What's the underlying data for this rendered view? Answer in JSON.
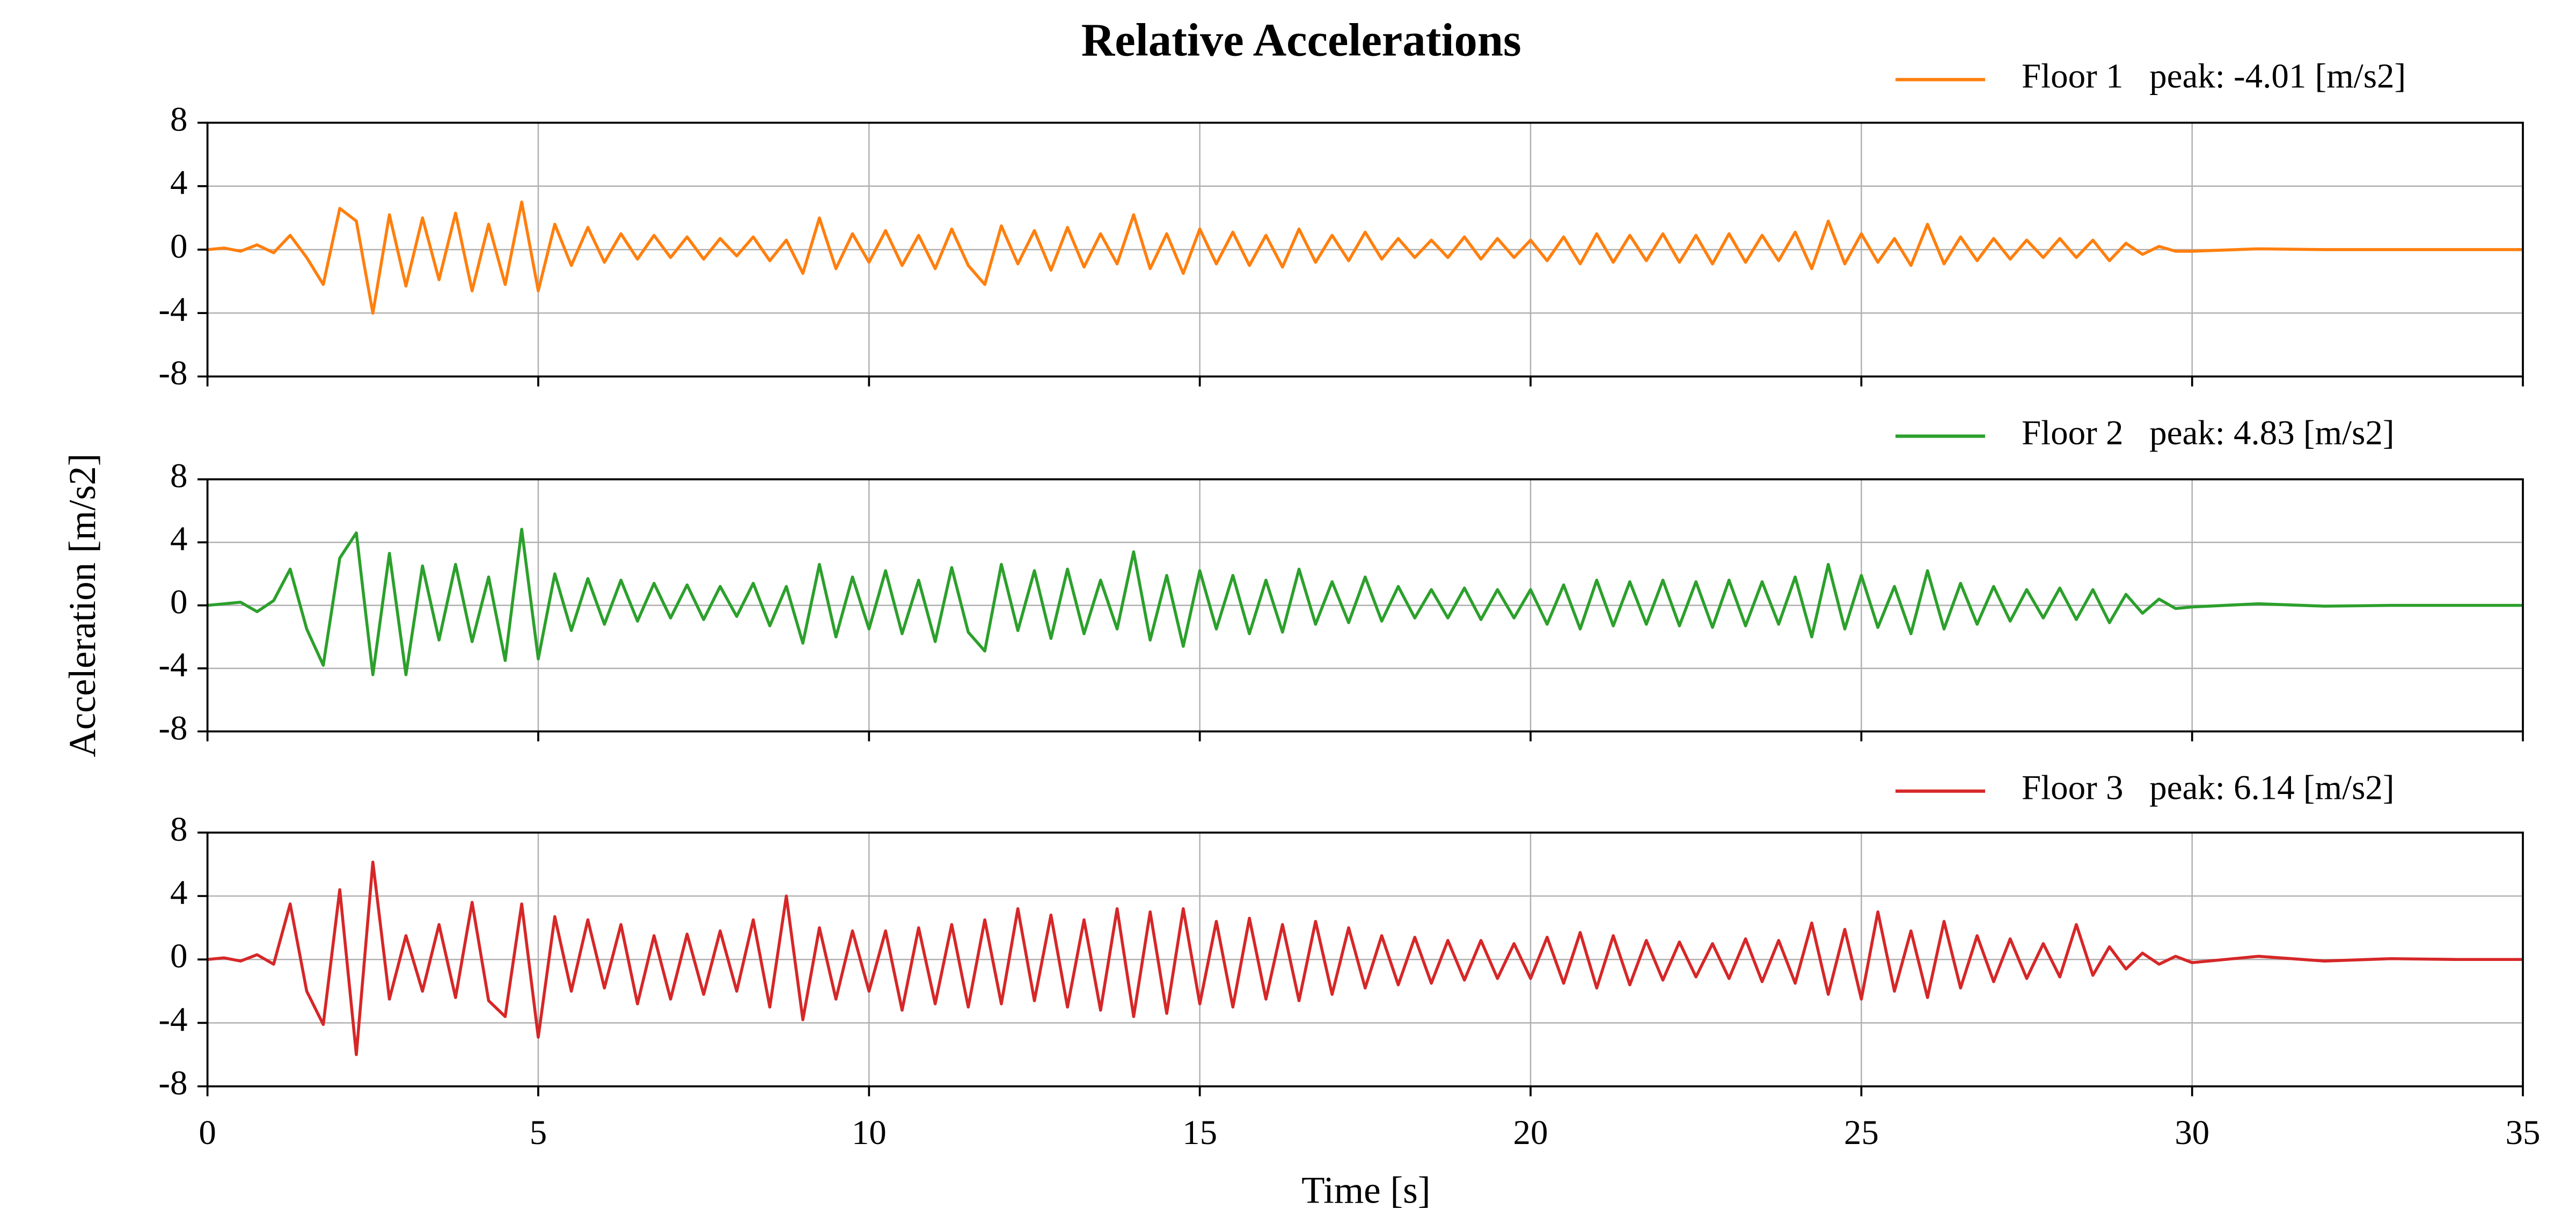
{
  "chart_data": [
    {
      "type": "line",
      "title": "Relative Accelerations",
      "x": [
        0,
        0.25,
        0.5,
        0.75,
        1,
        1.25,
        1.5,
        1.75,
        2,
        2.25,
        2.5,
        2.75,
        3,
        3.25,
        3.5,
        3.75,
        4,
        4.25,
        4.5,
        4.75,
        5,
        5.25,
        5.5,
        5.75,
        6,
        6.25,
        6.5,
        6.75,
        7,
        7.25,
        7.5,
        7.75,
        8,
        8.25,
        8.5,
        8.75,
        9,
        9.25,
        9.5,
        9.75,
        10,
        10.25,
        10.5,
        10.75,
        11,
        11.25,
        11.5,
        11.75,
        12,
        12.25,
        12.5,
        12.75,
        13,
        13.25,
        13.5,
        13.75,
        14,
        14.25,
        14.5,
        14.75,
        15,
        15.25,
        15.5,
        15.75,
        16,
        16.25,
        16.5,
        16.75,
        17,
        17.25,
        17.5,
        17.75,
        18,
        18.25,
        18.5,
        18.75,
        19,
        19.25,
        19.5,
        19.75,
        20,
        20.25,
        20.5,
        20.75,
        21,
        21.25,
        21.5,
        21.75,
        22,
        22.25,
        22.5,
        22.75,
        23,
        23.25,
        23.5,
        23.75,
        24,
        24.25,
        24.5,
        24.75,
        25,
        25.25,
        25.5,
        25.75,
        26,
        26.25,
        26.5,
        26.75,
        27,
        27.25,
        27.5,
        27.75,
        28,
        28.25,
        28.5,
        28.75,
        29,
        29.25,
        29.5,
        29.75,
        30,
        31,
        32,
        33,
        34,
        35
      ],
      "series": [
        {
          "name": "Floor 1   peak: -4.01 [m/s2]",
          "color": "#ff7f0e",
          "values": [
            0,
            0.1,
            -0.1,
            0.3,
            -0.2,
            0.9,
            -0.5,
            -2.2,
            2.6,
            1.8,
            -4.01,
            2.2,
            -2.3,
            2.0,
            -1.9,
            2.3,
            -2.6,
            1.6,
            -2.2,
            3.0,
            -2.6,
            1.6,
            -1.0,
            1.4,
            -0.8,
            1.0,
            -0.6,
            0.9,
            -0.5,
            0.8,
            -0.6,
            0.7,
            -0.4,
            0.8,
            -0.7,
            0.6,
            -1.5,
            2.0,
            -1.2,
            1.0,
            -0.8,
            1.2,
            -1.0,
            0.9,
            -1.2,
            1.3,
            -1.0,
            -2.2,
            1.5,
            -0.9,
            1.2,
            -1.3,
            1.4,
            -1.1,
            1.0,
            -0.9,
            2.2,
            -1.2,
            1.0,
            -1.5,
            1.3,
            -0.9,
            1.1,
            -1.0,
            0.9,
            -1.1,
            1.3,
            -0.8,
            0.9,
            -0.7,
            1.1,
            -0.6,
            0.7,
            -0.5,
            0.6,
            -0.5,
            0.8,
            -0.6,
            0.7,
            -0.5,
            0.6,
            -0.7,
            0.8,
            -0.9,
            1.0,
            -0.8,
            0.9,
            -0.7,
            1.0,
            -0.8,
            0.9,
            -0.9,
            1.0,
            -0.8,
            0.9,
            -0.7,
            1.1,
            -1.2,
            1.8,
            -0.9,
            1.0,
            -0.8,
            0.7,
            -1.0,
            1.6,
            -0.9,
            0.8,
            -0.7,
            0.7,
            -0.6,
            0.6,
            -0.5,
            0.7,
            -0.5,
            0.6,
            -0.7,
            0.4,
            -0.3,
            0.2,
            -0.1,
            -0.1,
            0.05,
            0,
            0,
            0,
            0
          ]
        }
      ],
      "xlim": [
        0,
        35
      ],
      "xticks": [
        0,
        5,
        10,
        15,
        20,
        25,
        30,
        35
      ],
      "ylim": [
        -8,
        8
      ],
      "yticks": [
        -8,
        -4,
        0,
        4,
        8
      ],
      "grid": true
    },
    {
      "type": "line",
      "ylabel": "Acceleration [m/s2]",
      "x": [
        0,
        0.25,
        0.5,
        0.75,
        1,
        1.25,
        1.5,
        1.75,
        2,
        2.25,
        2.5,
        2.75,
        3,
        3.25,
        3.5,
        3.75,
        4,
        4.25,
        4.5,
        4.75,
        5,
        5.25,
        5.5,
        5.75,
        6,
        6.25,
        6.5,
        6.75,
        7,
        7.25,
        7.5,
        7.75,
        8,
        8.25,
        8.5,
        8.75,
        9,
        9.25,
        9.5,
        9.75,
        10,
        10.25,
        10.5,
        10.75,
        11,
        11.25,
        11.5,
        11.75,
        12,
        12.25,
        12.5,
        12.75,
        13,
        13.25,
        13.5,
        13.75,
        14,
        14.25,
        14.5,
        14.75,
        15,
        15.25,
        15.5,
        15.75,
        16,
        16.25,
        16.5,
        16.75,
        17,
        17.25,
        17.5,
        17.75,
        18,
        18.25,
        18.5,
        18.75,
        19,
        19.25,
        19.5,
        19.75,
        20,
        20.25,
        20.5,
        20.75,
        21,
        21.25,
        21.5,
        21.75,
        22,
        22.25,
        22.5,
        22.75,
        23,
        23.25,
        23.5,
        23.75,
        24,
        24.25,
        24.5,
        24.75,
        25,
        25.25,
        25.5,
        25.75,
        26,
        26.25,
        26.5,
        26.75,
        27,
        27.25,
        27.5,
        27.75,
        28,
        28.25,
        28.5,
        28.75,
        29,
        29.25,
        29.5,
        29.75,
        30,
        31,
        32,
        33,
        34,
        35
      ],
      "series": [
        {
          "name": "Floor 2   peak: 4.83 [m/s2]",
          "color": "#2ca02c",
          "values": [
            0,
            0.1,
            0.2,
            -0.4,
            0.3,
            2.3,
            -1.5,
            -3.8,
            3.0,
            4.6,
            -4.4,
            3.3,
            -4.4,
            2.5,
            -2.2,
            2.6,
            -2.3,
            1.8,
            -3.5,
            4.83,
            -3.4,
            2.0,
            -1.6,
            1.7,
            -1.2,
            1.6,
            -1.0,
            1.4,
            -0.8,
            1.3,
            -0.9,
            1.2,
            -0.7,
            1.4,
            -1.3,
            1.2,
            -2.4,
            2.6,
            -2.0,
            1.8,
            -1.5,
            2.2,
            -1.8,
            1.6,
            -2.3,
            2.4,
            -1.7,
            -2.9,
            2.6,
            -1.6,
            2.2,
            -2.1,
            2.3,
            -1.8,
            1.6,
            -1.5,
            3.4,
            -2.2,
            1.9,
            -2.6,
            2.2,
            -1.5,
            1.9,
            -1.8,
            1.6,
            -1.7,
            2.3,
            -1.2,
            1.5,
            -1.1,
            1.8,
            -1.0,
            1.2,
            -0.8,
            1.0,
            -0.8,
            1.1,
            -0.9,
            1.0,
            -0.8,
            1.0,
            -1.2,
            1.3,
            -1.5,
            1.6,
            -1.3,
            1.5,
            -1.2,
            1.6,
            -1.3,
            1.5,
            -1.4,
            1.6,
            -1.3,
            1.5,
            -1.2,
            1.8,
            -2.0,
            2.6,
            -1.5,
            1.9,
            -1.4,
            1.2,
            -1.8,
            2.2,
            -1.5,
            1.4,
            -1.2,
            1.2,
            -1.0,
            1.0,
            -0.8,
            1.1,
            -0.9,
            1.0,
            -1.1,
            0.7,
            -0.5,
            0.4,
            -0.2,
            -0.1,
            0.1,
            -0.05,
            0,
            0,
            0
          ]
        }
      ],
      "xlim": [
        0,
        35
      ],
      "xticks": [
        0,
        5,
        10,
        15,
        20,
        25,
        30,
        35
      ],
      "ylim": [
        -8,
        8
      ],
      "yticks": [
        -8,
        -4,
        0,
        4,
        8
      ],
      "grid": true
    },
    {
      "type": "line",
      "xlabel": "Time [s]",
      "x": [
        0,
        0.25,
        0.5,
        0.75,
        1,
        1.25,
        1.5,
        1.75,
        2,
        2.25,
        2.5,
        2.75,
        3,
        3.25,
        3.5,
        3.75,
        4,
        4.25,
        4.5,
        4.75,
        5,
        5.25,
        5.5,
        5.75,
        6,
        6.25,
        6.5,
        6.75,
        7,
        7.25,
        7.5,
        7.75,
        8,
        8.25,
        8.5,
        8.75,
        9,
        9.25,
        9.5,
        9.75,
        10,
        10.25,
        10.5,
        10.75,
        11,
        11.25,
        11.5,
        11.75,
        12,
        12.25,
        12.5,
        12.75,
        13,
        13.25,
        13.5,
        13.75,
        14,
        14.25,
        14.5,
        14.75,
        15,
        15.25,
        15.5,
        15.75,
        16,
        16.25,
        16.5,
        16.75,
        17,
        17.25,
        17.5,
        17.75,
        18,
        18.25,
        18.5,
        18.75,
        19,
        19.25,
        19.5,
        19.75,
        20,
        20.25,
        20.5,
        20.75,
        21,
        21.25,
        21.5,
        21.75,
        22,
        22.25,
        22.5,
        22.75,
        23,
        23.25,
        23.5,
        23.75,
        24,
        24.25,
        24.5,
        24.75,
        25,
        25.25,
        25.5,
        25.75,
        26,
        26.25,
        26.5,
        26.75,
        27,
        27.25,
        27.5,
        27.75,
        28,
        28.25,
        28.5,
        28.75,
        29,
        29.25,
        29.5,
        29.75,
        30,
        31,
        32,
        33,
        34,
        35
      ],
      "series": [
        {
          "name": "Floor 3   peak: 6.14 [m/s2]",
          "color": "#d62728",
          "values": [
            0,
            0.1,
            -0.1,
            0.3,
            -0.3,
            3.5,
            -2.0,
            -4.1,
            4.4,
            -6.0,
            6.14,
            -2.5,
            1.5,
            -2.0,
            2.2,
            -2.4,
            3.6,
            -2.6,
            -3.6,
            3.5,
            -4.9,
            2.7,
            -2.0,
            2.5,
            -1.8,
            2.2,
            -2.8,
            1.5,
            -2.5,
            1.6,
            -2.2,
            1.8,
            -2.0,
            2.5,
            -3.0,
            4.0,
            -3.8,
            2.0,
            -2.5,
            1.8,
            -2.0,
            1.8,
            -3.2,
            2.0,
            -2.8,
            2.2,
            -3.0,
            2.5,
            -2.8,
            3.2,
            -2.6,
            2.8,
            -3.0,
            2.5,
            -3.2,
            3.2,
            -3.6,
            3.0,
            -3.4,
            3.2,
            -2.8,
            2.4,
            -3.0,
            2.6,
            -2.5,
            2.2,
            -2.6,
            2.4,
            -2.2,
            2.0,
            -1.8,
            1.5,
            -1.6,
            1.4,
            -1.5,
            1.2,
            -1.3,
            1.2,
            -1.2,
            1.0,
            -1.2,
            1.4,
            -1.5,
            1.7,
            -1.8,
            1.5,
            -1.6,
            1.2,
            -1.3,
            1.1,
            -1.1,
            1.0,
            -1.2,
            1.3,
            -1.4,
            1.2,
            -1.5,
            2.3,
            -2.2,
            1.9,
            -2.5,
            3.0,
            -2.0,
            1.8,
            -2.4,
            2.4,
            -1.8,
            1.5,
            -1.4,
            1.3,
            -1.2,
            1.0,
            -1.1,
            2.2,
            -1.0,
            0.8,
            -0.6,
            0.4,
            -0.3,
            0.2,
            -0.2,
            0.2,
            -0.1,
            0.05,
            0,
            0
          ]
        }
      ],
      "xlim": [
        0,
        35
      ],
      "xticks": [
        0,
        5,
        10,
        15,
        20,
        25,
        30,
        35
      ],
      "ylim": [
        -8,
        8
      ],
      "yticks": [
        -8,
        -4,
        0,
        4,
        8
      ],
      "grid": true
    }
  ]
}
